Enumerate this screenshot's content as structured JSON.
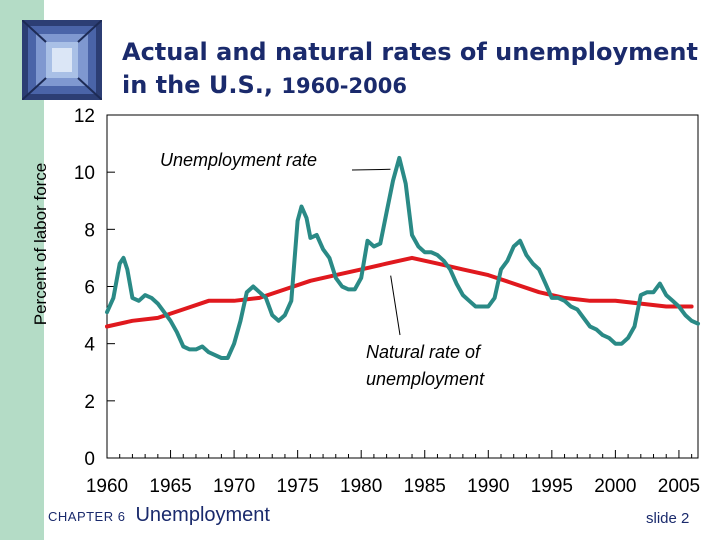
{
  "slide": {
    "title_main": "Actual and natural rates of unemployment in the U.S.,",
    "title_years": "1960-2006",
    "chapter_label": "CHAPTER 6",
    "chapter_name": "Unemployment",
    "slide_number": "slide 2"
  },
  "colors": {
    "actual_rate": "#2a8a86",
    "natural_rate": "#e0191e",
    "title": "#1a2a6c",
    "sidebar": "#b4dcc6"
  },
  "chart_data": {
    "type": "line",
    "title": "Actual and natural rates of unemployment in the U.S., 1960-2006",
    "xlabel": "",
    "ylabel": "Percent of labor force",
    "xlim": [
      1960,
      2006.5
    ],
    "ylim": [
      0,
      12
    ],
    "x_ticks": [
      "1960",
      "1965",
      "1970",
      "1975",
      "1980",
      "1985",
      "1990",
      "1995",
      "2000",
      "2005"
    ],
    "y_ticks": [
      "0",
      "2",
      "4",
      "6",
      "8",
      "10",
      "12"
    ],
    "grid": false,
    "annotations": [
      {
        "text": "Unemployment rate",
        "series": "Unemployment rate",
        "point": [
          1982.3,
          10.1
        ]
      },
      {
        "text": "Natural rate of",
        "line2": "unemployment",
        "series": "Natural rate of unemployment",
        "point": [
          1983.5,
          6.8
        ]
      }
    ],
    "series": [
      {
        "name": "Unemployment rate",
        "x": [
          1960.0,
          1960.5,
          1961.0,
          1961.3,
          1961.6,
          1962.0,
          1962.5,
          1963.0,
          1963.5,
          1964.0,
          1964.5,
          1965.0,
          1965.5,
          1966.0,
          1966.5,
          1967.0,
          1967.5,
          1968.0,
          1968.5,
          1969.0,
          1969.5,
          1970.0,
          1970.5,
          1971.0,
          1971.5,
          1972.0,
          1972.5,
          1973.0,
          1973.5,
          1974.0,
          1974.5,
          1975.0,
          1975.3,
          1975.7,
          1976.0,
          1976.5,
          1977.0,
          1977.5,
          1978.0,
          1978.5,
          1979.0,
          1979.5,
          1980.0,
          1980.5,
          1981.0,
          1981.5,
          1982.0,
          1982.5,
          1983.0,
          1983.5,
          1984.0,
          1984.5,
          1985.0,
          1985.5,
          1986.0,
          1986.5,
          1987.0,
          1987.5,
          1988.0,
          1988.5,
          1989.0,
          1989.5,
          1990.0,
          1990.5,
          1991.0,
          1991.5,
          1992.0,
          1992.5,
          1993.0,
          1993.5,
          1994.0,
          1994.5,
          1995.0,
          1995.5,
          1996.0,
          1996.5,
          1997.0,
          1997.5,
          1998.0,
          1998.5,
          1999.0,
          1999.5,
          2000.0,
          2000.5,
          2001.0,
          2001.5,
          2002.0,
          2002.5,
          2003.0,
          2003.5,
          2004.0,
          2004.5,
          2005.0,
          2005.5,
          2006.0,
          2006.5
        ],
        "values": [
          5.1,
          5.6,
          6.8,
          7.0,
          6.6,
          5.6,
          5.5,
          5.7,
          5.6,
          5.4,
          5.1,
          4.8,
          4.4,
          3.9,
          3.8,
          3.8,
          3.9,
          3.7,
          3.6,
          3.5,
          3.5,
          4.0,
          4.8,
          5.8,
          6.0,
          5.8,
          5.6,
          5.0,
          4.8,
          5.0,
          5.5,
          8.3,
          8.8,
          8.4,
          7.7,
          7.8,
          7.3,
          7.0,
          6.3,
          6.0,
          5.9,
          5.9,
          6.3,
          7.6,
          7.4,
          7.5,
          8.6,
          9.7,
          10.5,
          9.6,
          7.8,
          7.4,
          7.2,
          7.2,
          7.1,
          6.9,
          6.6,
          6.1,
          5.7,
          5.5,
          5.3,
          5.3,
          5.3,
          5.6,
          6.6,
          6.9,
          7.4,
          7.6,
          7.1,
          6.8,
          6.6,
          6.1,
          5.6,
          5.6,
          5.5,
          5.3,
          5.2,
          4.9,
          4.6,
          4.5,
          4.3,
          4.2,
          4.0,
          4.0,
          4.2,
          4.6,
          5.7,
          5.8,
          5.8,
          6.1,
          5.7,
          5.5,
          5.3,
          5.0,
          4.8,
          4.7
        ]
      },
      {
        "name": "Natural rate of unemployment",
        "x": [
          1960,
          1962,
          1964,
          1966,
          1968,
          1970,
          1972,
          1974,
          1976,
          1978,
          1980,
          1982,
          1984,
          1986,
          1988,
          1990,
          1992,
          1994,
          1996,
          1998,
          2000,
          2002,
          2004,
          2006
        ],
        "values": [
          4.6,
          4.8,
          4.9,
          5.2,
          5.5,
          5.5,
          5.6,
          5.9,
          6.2,
          6.4,
          6.6,
          6.8,
          7.0,
          6.8,
          6.6,
          6.4,
          6.1,
          5.8,
          5.6,
          5.5,
          5.5,
          5.4,
          5.3,
          5.3
        ]
      }
    ]
  }
}
